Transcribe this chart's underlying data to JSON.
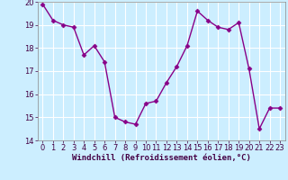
{
  "x": [
    0,
    1,
    2,
    3,
    4,
    5,
    6,
    7,
    8,
    9,
    10,
    11,
    12,
    13,
    14,
    15,
    16,
    17,
    18,
    19,
    20,
    21,
    22,
    23
  ],
  "y": [
    19.9,
    19.2,
    19.0,
    18.9,
    17.7,
    18.1,
    17.4,
    15.0,
    14.8,
    14.7,
    15.6,
    15.7,
    16.5,
    17.2,
    18.1,
    19.6,
    19.2,
    18.9,
    18.8,
    19.1,
    17.1,
    14.5,
    15.4,
    15.4
  ],
  "line_color": "#880088",
  "marker": "D",
  "markersize": 2.5,
  "linewidth": 1.0,
  "bg_color": "#cceeff",
  "grid_color": "#aadddd",
  "xlabel": "Windchill (Refroidissement éolien,°C)",
  "xlabel_fontsize": 6.5,
  "tick_fontsize": 6.0,
  "ylim": [
    14,
    20
  ],
  "xlim": [
    -0.5,
    23.5
  ],
  "yticks": [
    14,
    15,
    16,
    17,
    18,
    19,
    20
  ],
  "xticks": [
    0,
    1,
    2,
    3,
    4,
    5,
    6,
    7,
    8,
    9,
    10,
    11,
    12,
    13,
    14,
    15,
    16,
    17,
    18,
    19,
    20,
    21,
    22,
    23
  ]
}
